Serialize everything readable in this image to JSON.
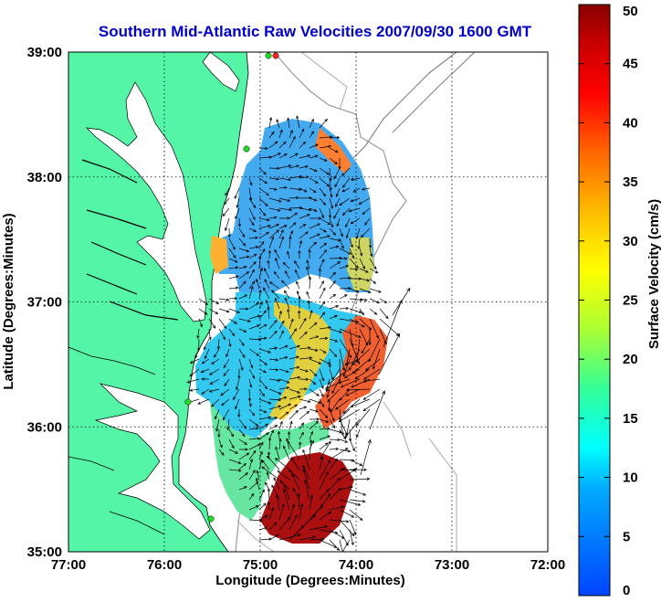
{
  "title": "Southern Mid-Atlantic Raw Velocities 2007/09/30 1600 GMT",
  "xlabel": "Longitude (Degrees:Minutes)",
  "ylabel": "Latitude (Degrees:Minutes)",
  "colorbar": {
    "label": "Surface Velocity (cm/s)",
    "min": 0,
    "max": 50,
    "ticks": [
      "0",
      "5",
      "10",
      "15",
      "20",
      "25",
      "30",
      "35",
      "40",
      "45",
      "50"
    ]
  },
  "x_ticks": [
    "77:00",
    "76:00",
    "75:00",
    "74:00",
    "73:00",
    "72:00"
  ],
  "y_ticks": [
    "39:00",
    "38:00",
    "37:00",
    "36:00",
    "35:00"
  ],
  "colors": {
    "land": "#55f5a8",
    "title": "#0000cc",
    "station": "#22dd22",
    "station_red": "#ff2222"
  }
}
